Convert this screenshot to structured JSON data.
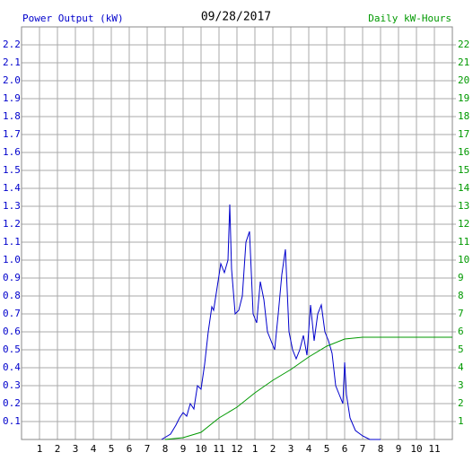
{
  "chart_data": {
    "type": "line",
    "title": "09/28/2017",
    "y_label": "Power Output (kW)",
    "y2_label": "Daily kW-Hours",
    "xlim": [
      0,
      24
    ],
    "xticks": [
      1,
      2,
      3,
      4,
      5,
      6,
      7,
      8,
      9,
      10,
      11,
      12,
      {
        "value": 13,
        "label": "1"
      },
      {
        "value": 14,
        "label": "2"
      },
      {
        "value": 15,
        "label": "3"
      },
      {
        "value": 16,
        "label": "4"
      },
      {
        "value": 17,
        "label": "5"
      },
      {
        "value": 18,
        "label": "6"
      },
      {
        "value": 19,
        "label": "7"
      },
      {
        "value": 20,
        "label": "8"
      },
      {
        "value": 21,
        "label": "9"
      },
      {
        "value": 22,
        "label": "10"
      },
      {
        "value": 23,
        "label": "11"
      }
    ],
    "ylim": [
      0,
      2.3
    ],
    "yticks": [
      0.1,
      0.2,
      0.3,
      0.4,
      0.5,
      0.6,
      0.7,
      0.8,
      0.9,
      {
        "value": 1,
        "label": "1.0"
      },
      1.1,
      1.2,
      1.3,
      1.4,
      1.5,
      1.6,
      1.7,
      1.8,
      1.9,
      {
        "value": 2,
        "label": "2.0"
      },
      2.1,
      2.2
    ],
    "y2lim": [
      0,
      23
    ],
    "y2ticks": [
      1,
      2,
      3,
      4,
      5,
      6,
      7,
      8,
      9,
      10,
      11,
      12,
      13,
      14,
      15,
      16,
      17,
      18,
      19,
      20,
      21,
      22
    ],
    "grid": true,
    "series": [
      {
        "name": "Power Output (kW)",
        "color": "#0000cc",
        "x": [
          7.8,
          8.3,
          8.6,
          8.8,
          9.0,
          9.2,
          9.4,
          9.6,
          9.8,
          10.0,
          10.2,
          10.4,
          10.6,
          10.7,
          10.9,
          11.1,
          11.3,
          11.5,
          11.6,
          11.7,
          11.9,
          12.1,
          12.3,
          12.5,
          12.7,
          12.9,
          13.1,
          13.3,
          13.5,
          13.7,
          13.9,
          14.1,
          14.3,
          14.5,
          14.7,
          14.9,
          15.1,
          15.3,
          15.5,
          15.7,
          15.9,
          16.1,
          16.3,
          16.5,
          16.7,
          16.9,
          17.1,
          17.3,
          17.5,
          17.7,
          17.9,
          18.0,
          18.1,
          18.3,
          18.6,
          19.0,
          19.4,
          20.0
        ],
        "values": [
          0,
          0.03,
          0.08,
          0.12,
          0.15,
          0.13,
          0.2,
          0.17,
          0.3,
          0.28,
          0.42,
          0.6,
          0.74,
          0.72,
          0.85,
          0.98,
          0.93,
          1.0,
          1.31,
          0.95,
          0.7,
          0.72,
          0.8,
          1.1,
          1.16,
          0.7,
          0.65,
          0.88,
          0.78,
          0.6,
          0.55,
          0.5,
          0.7,
          0.92,
          1.06,
          0.6,
          0.5,
          0.45,
          0.5,
          0.58,
          0.47,
          0.75,
          0.55,
          0.7,
          0.75,
          0.6,
          0.55,
          0.48,
          0.3,
          0.25,
          0.2,
          0.43,
          0.25,
          0.12,
          0.05,
          0.02,
          0,
          0
        ]
      },
      {
        "name": "Daily kW-Hours",
        "color": "#009900",
        "axis": "y2",
        "x": [
          8.0,
          9.0,
          10.0,
          11.0,
          12.0,
          13.0,
          14.0,
          15.0,
          16.0,
          17.0,
          18.0,
          19.0,
          24.0
        ],
        "values": [
          0,
          0.1,
          0.4,
          1.2,
          1.8,
          2.6,
          3.3,
          3.9,
          4.6,
          5.2,
          5.6,
          5.7,
          5.7
        ]
      }
    ]
  }
}
